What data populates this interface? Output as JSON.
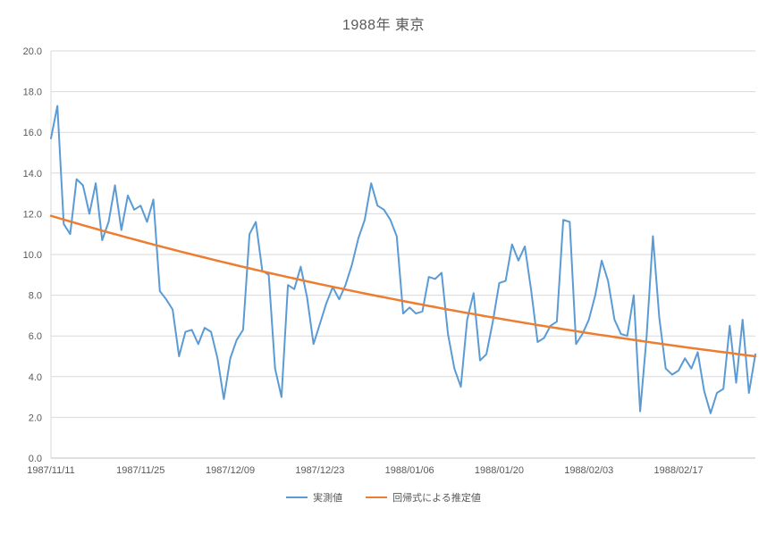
{
  "chart_data": {
    "type": "line",
    "title": "1988年 東京",
    "grid": "horizontal",
    "legend_position": "bottom",
    "ylim": [
      0,
      20
    ],
    "y_tick_step": 2,
    "y_tick_labels": [
      "0.0",
      "2.0",
      "4.0",
      "6.0",
      "8.0",
      "10.0",
      "12.0",
      "14.0",
      "16.0",
      "18.0",
      "20.0"
    ],
    "x_tick_labels": [
      "1987/11/11",
      "1987/11/25",
      "1987/12/09",
      "1987/12/23",
      "1988/01/06",
      "1988/01/20",
      "1988/02/03",
      "1988/02/17"
    ],
    "x_tick_days": [
      0,
      14,
      28,
      42,
      56,
      70,
      84,
      98
    ],
    "x_total_days": 110,
    "axis_color": "#bfbfbf",
    "gridline_color": "#d9d9d9",
    "label_color": "#595959",
    "series": [
      {
        "name": "実測値",
        "color": "#5b9bd5",
        "values": [
          15.7,
          17.3,
          11.5,
          11.0,
          13.7,
          13.4,
          12.0,
          13.5,
          10.7,
          11.6,
          13.4,
          11.2,
          12.9,
          12.2,
          12.4,
          11.6,
          12.7,
          8.2,
          7.8,
          7.3,
          5.0,
          6.2,
          6.3,
          5.6,
          6.4,
          6.2,
          4.9,
          2.9,
          4.9,
          5.8,
          6.3,
          11.0,
          11.6,
          9.2,
          9.0,
          4.4,
          3.0,
          8.5,
          8.3,
          9.4,
          7.9,
          5.6,
          6.6,
          7.6,
          8.4,
          7.8,
          8.5,
          9.5,
          10.8,
          11.7,
          13.5,
          12.4,
          12.2,
          11.7,
          10.9,
          7.1,
          7.4,
          7.1,
          7.2,
          8.9,
          8.8,
          9.1,
          6.1,
          4.4,
          3.5,
          6.8,
          8.1,
          4.8,
          5.1,
          6.7,
          8.6,
          8.7,
          10.5,
          9.7,
          10.4,
          8.2,
          5.7,
          5.9,
          6.5,
          6.7,
          11.7,
          11.6,
          5.6,
          6.1,
          6.8,
          8.0,
          9.7,
          8.7,
          6.8,
          6.1,
          6.0,
          8.0,
          2.3,
          5.9,
          10.9,
          6.9,
          4.4,
          4.1,
          4.3,
          4.9,
          4.4,
          5.2,
          3.3,
          2.2,
          3.2,
          3.4,
          6.5,
          3.7,
          6.8,
          3.2,
          5.1
        ]
      },
      {
        "name": "回帰式による推定値",
        "color": "#ed7d31",
        "regression": {
          "type": "exponential_decay",
          "start_value": 11.9,
          "end_value": 5.0
        },
        "sampled_values_at_ticks": [
          11.9,
          10.7,
          9.5,
          8.6,
          7.7,
          6.9,
          6.1,
          5.5
        ]
      }
    ]
  },
  "legend": {
    "measured_label": "実測値",
    "regression_label": "回帰式による推定値"
  }
}
